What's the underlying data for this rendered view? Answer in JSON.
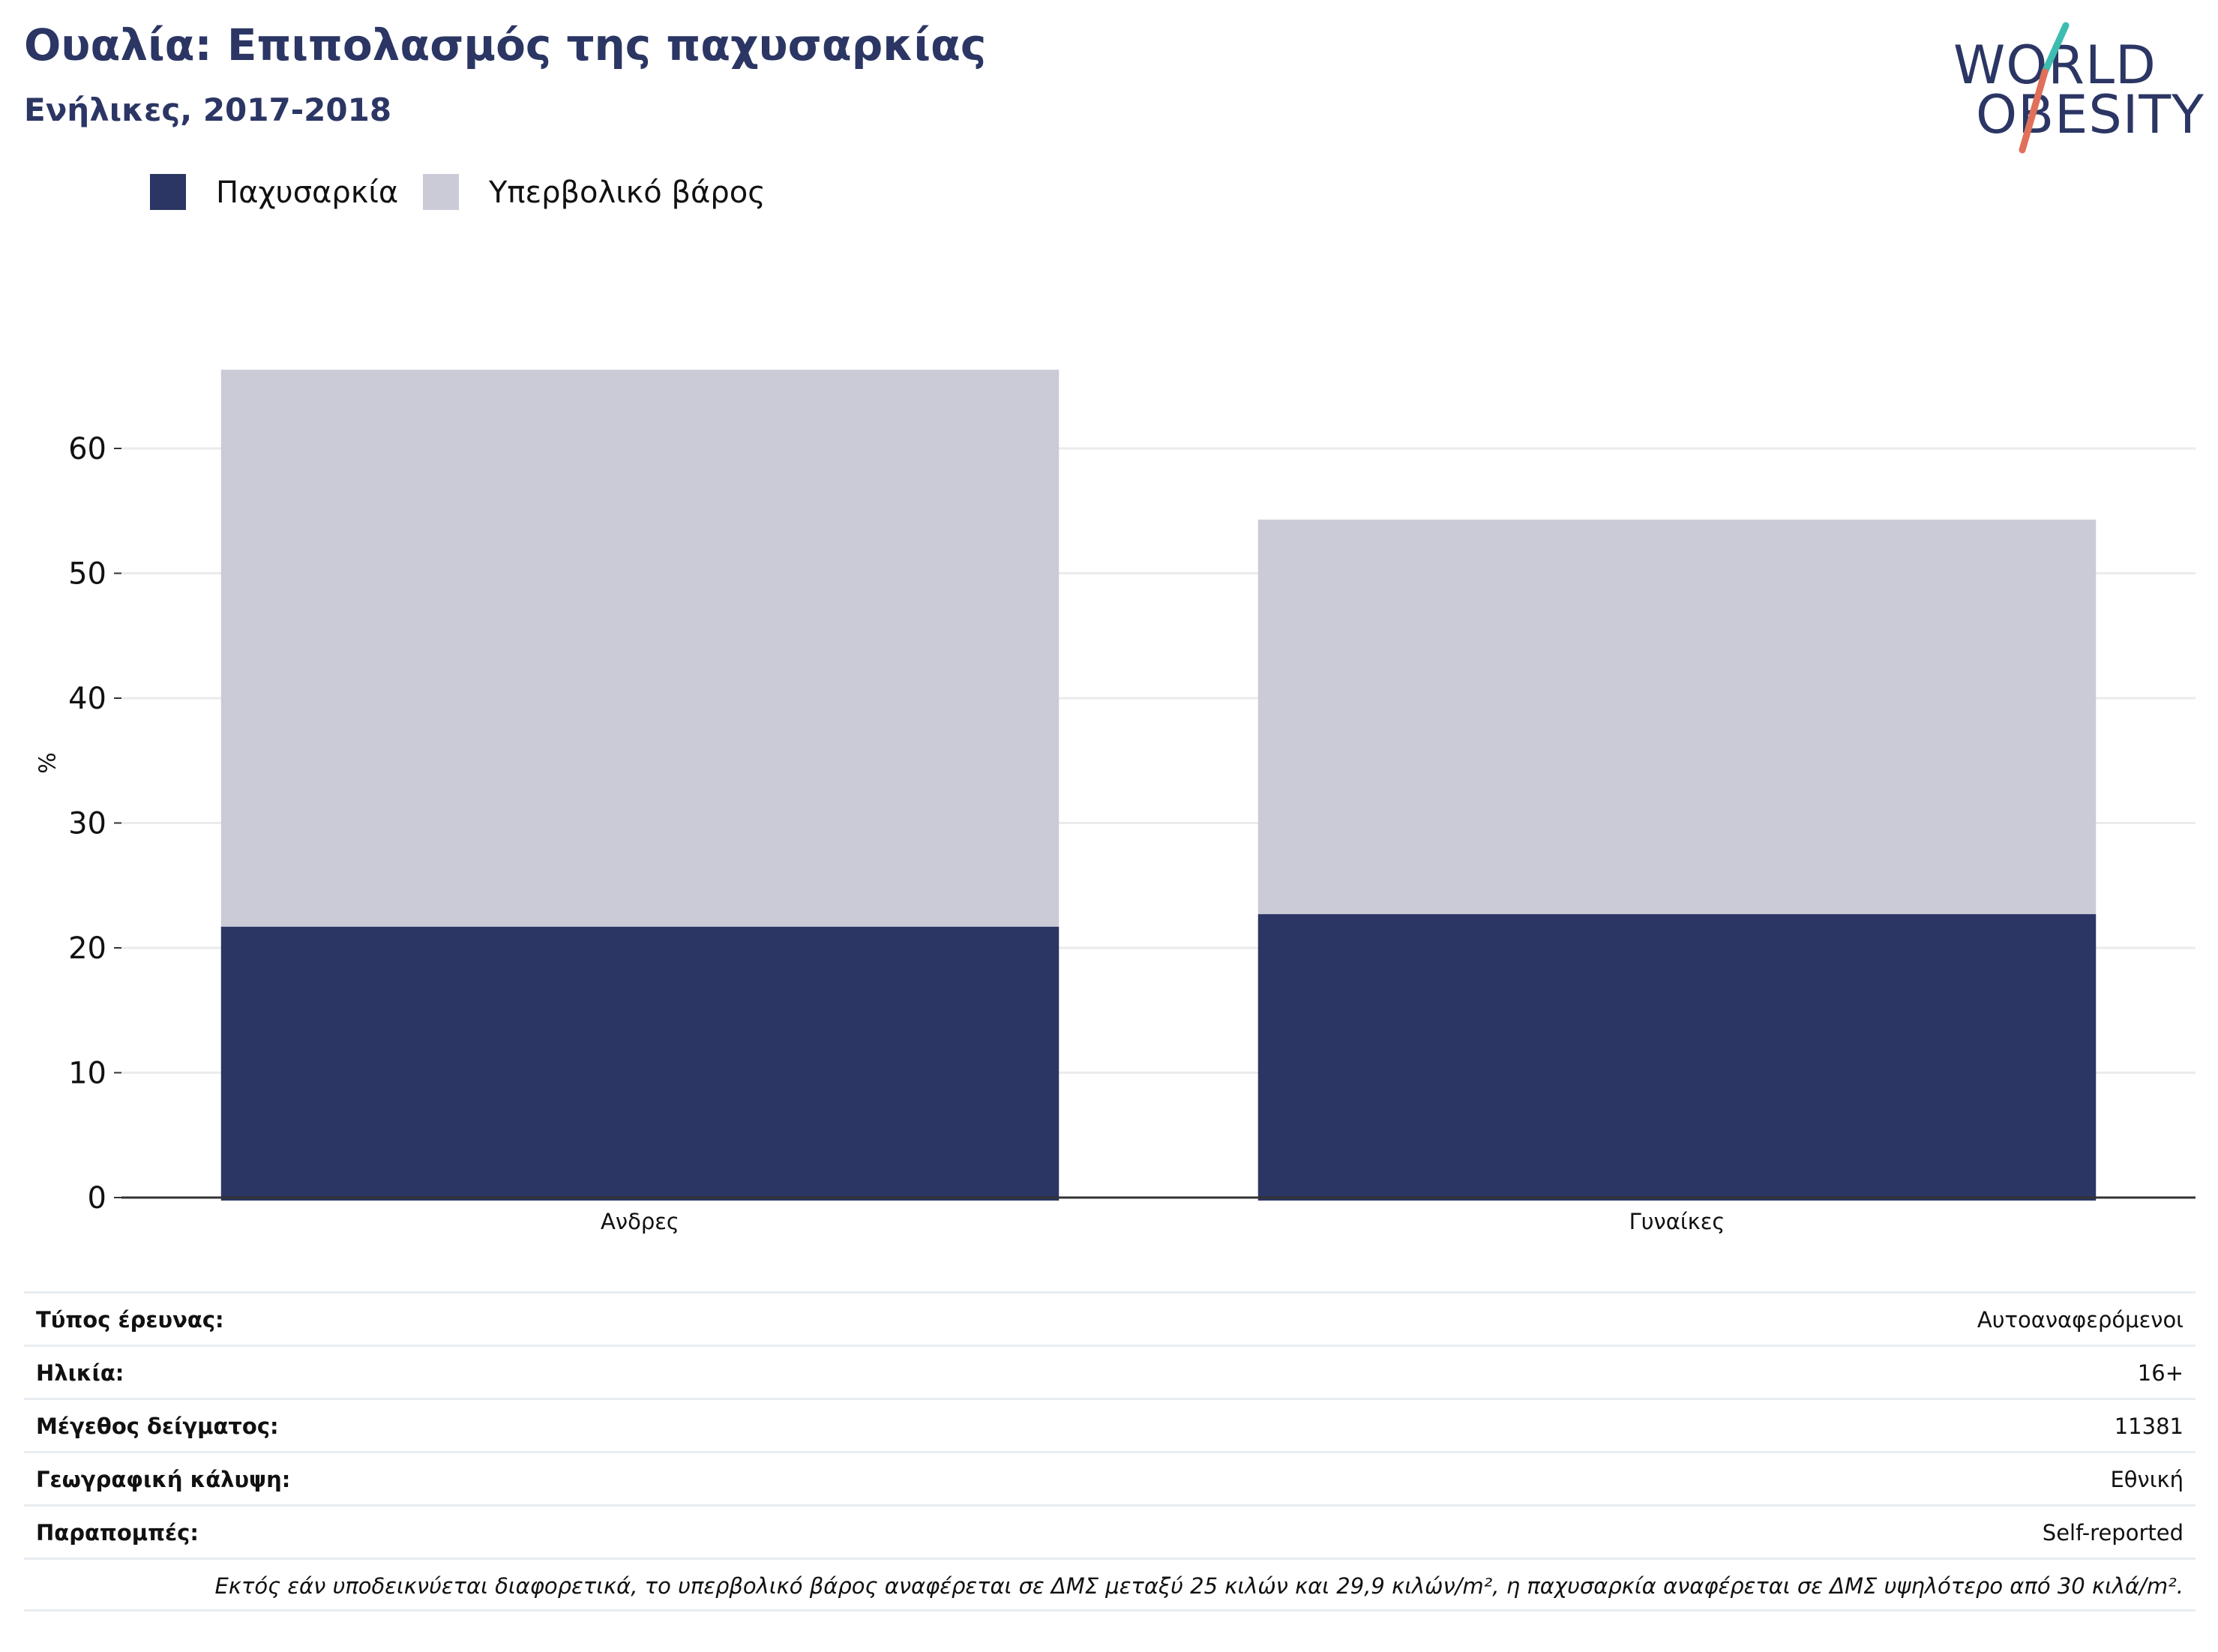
{
  "header": {
    "title": "Ουαλία: Επιπολασμός της παχυσαρκίας",
    "subtitle": "Ενήλικες, 2017-2018"
  },
  "logo": {
    "line1": "WORLD",
    "line2": "OBESITY",
    "colors": {
      "text": "#2b3664",
      "slash_teal": "#3dbdb0",
      "slash_coral": "#e0705a"
    }
  },
  "legend": [
    {
      "label": "Παχυσαρκία",
      "color": "#2b3664"
    },
    {
      "label": "Υπερβολικό βάρος",
      "color": "#cacbd7"
    }
  ],
  "chart_data": {
    "type": "bar",
    "stacked": true,
    "categories": [
      "Ανδρες",
      "Γυναίκες"
    ],
    "series": [
      {
        "name": "Παχυσαρκία",
        "color": "#2b3664",
        "values": [
          21.7,
          22.7
        ]
      },
      {
        "name": "Υπερβολικό βάρος",
        "color": "#cacbd7",
        "values": [
          44.6,
          31.6
        ]
      }
    ],
    "ylabel": "%",
    "xlabel": "",
    "ylim": [
      0,
      70
    ],
    "yticks": [
      0,
      10,
      20,
      30,
      40,
      50,
      60
    ],
    "grid": true,
    "legend_position": "top-left"
  },
  "info": {
    "rows": [
      {
        "key": "Τύπος έρευνας:",
        "value": "Αυτοαναφερόμενοι"
      },
      {
        "key": "Ηλικία:",
        "value": "16+"
      },
      {
        "key": "Μέγεθος δείγματος:",
        "value": "11381"
      },
      {
        "key": "Γεωγραφική κάλυψη:",
        "value": "Εθνική"
      },
      {
        "key": "Παραπομπές:",
        "value": "Self-reported"
      }
    ],
    "note": "Εκτός εάν υποδεικνύεται διαφορετικά, το υπερβολικό βάρος αναφέρεται σε ΔΜΣ μεταξύ 25 κιλών και 29,9 κιλών/m², η παχυσαρκία αναφέρεται σε ΔΜΣ υψηλότερο από 30 κιλά/m²."
  }
}
